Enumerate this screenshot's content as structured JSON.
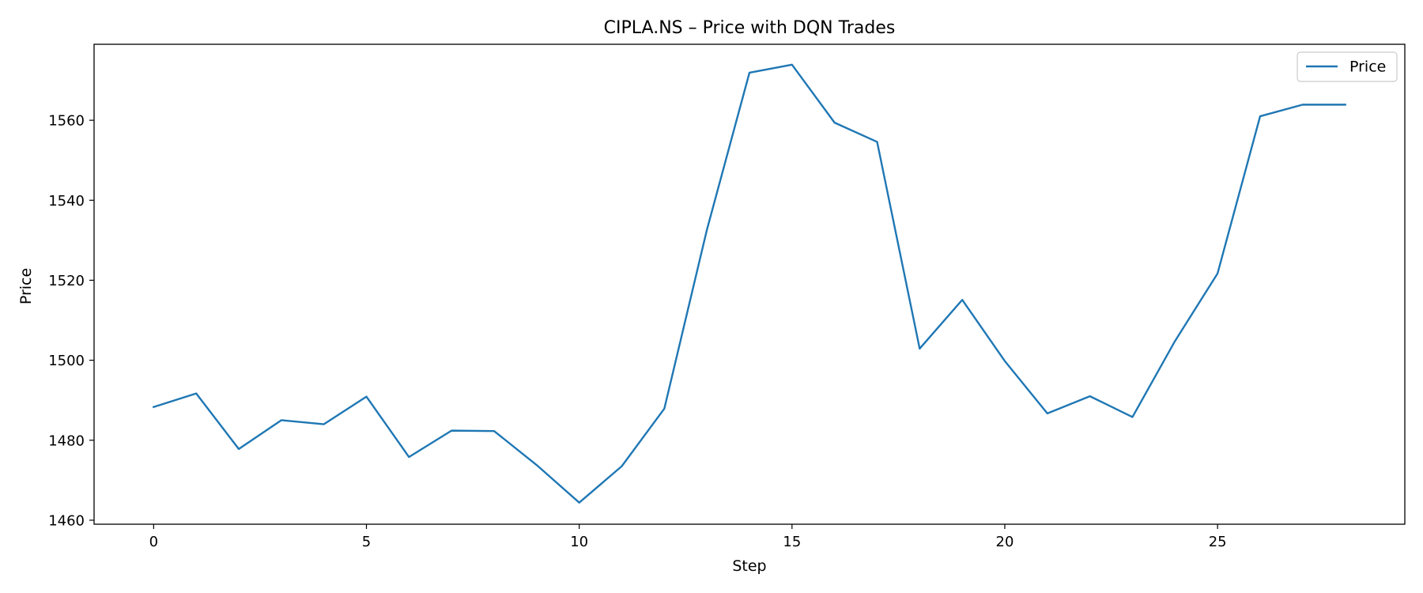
{
  "chart_data": {
    "type": "line",
    "title": "CIPLA.NS – Price with DQN Trades",
    "xlabel": "Step",
    "ylabel": "Price",
    "xlim": [
      -1.4,
      29.4
    ],
    "ylim": [
      1459,
      1579
    ],
    "xticks": [
      0,
      5,
      10,
      15,
      20,
      25
    ],
    "yticks": [
      1460,
      1480,
      1500,
      1520,
      1540,
      1560
    ],
    "grid": false,
    "legend": {
      "placement": "top-right",
      "entries": [
        "Price"
      ]
    },
    "series": [
      {
        "name": "Price",
        "color": "#1f77b4",
        "x": [
          0,
          1,
          2,
          3,
          4,
          5,
          6,
          7,
          8,
          9,
          10,
          11,
          12,
          13,
          14,
          15,
          16,
          17,
          18,
          19,
          20,
          21,
          22,
          23,
          24,
          25,
          26,
          27,
          28
        ],
        "y": [
          1488.3,
          1491.7,
          1477.8,
          1485.0,
          1484.0,
          1490.9,
          1475.8,
          1482.4,
          1482.3,
          1473.8,
          1464.4,
          1473.5,
          1487.9,
          1532.6,
          1571.9,
          1573.9,
          1559.4,
          1554.6,
          1502.9,
          1515.1,
          1499.8,
          1486.7,
          1491.0,
          1485.8,
          1504.8,
          1521.7,
          1561.0,
          1563.9,
          1563.9
        ]
      }
    ]
  }
}
